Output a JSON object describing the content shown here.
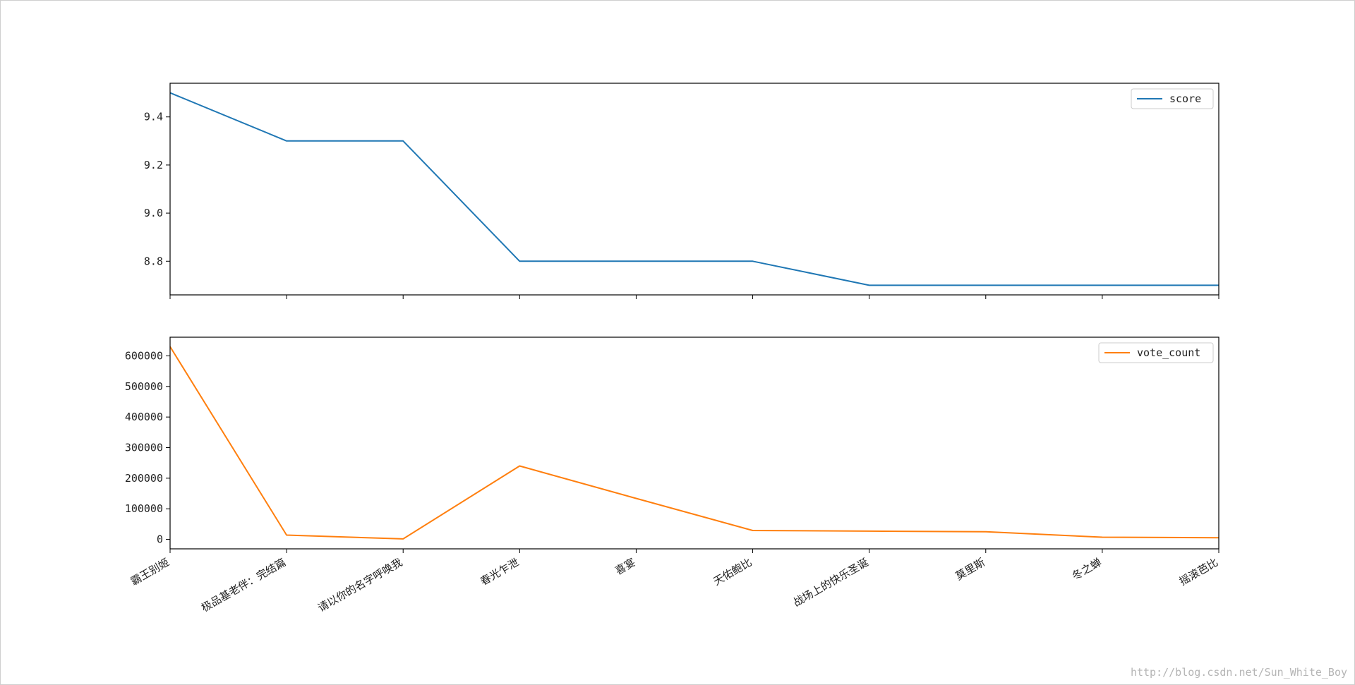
{
  "watermark": "http://blog.csdn.net/Sun_White_Boy",
  "chart_data": [
    {
      "type": "line",
      "categories": [
        "霸王别姬",
        "极品基老伴：完结篇",
        "请以你的名字呼唤我",
        "春光乍泄",
        "喜宴",
        "天佑鲍比",
        "战场上的快乐圣诞",
        "莫里斯",
        "冬之蝉",
        "摇滚芭比"
      ],
      "series": [
        {
          "name": "score",
          "color": "#1f77b4",
          "values": [
            9.5,
            9.3,
            9.3,
            8.8,
            8.8,
            8.8,
            8.7,
            8.7,
            8.7,
            8.7
          ]
        }
      ],
      "ylim": [
        8.66,
        9.54
      ],
      "yticks": [
        8.8,
        9.0,
        9.2,
        9.4
      ],
      "ytick_labels": [
        "8.8",
        "9.0",
        "9.2",
        "9.4"
      ],
      "show_x_labels": false,
      "grid": false,
      "legend": "top-right"
    },
    {
      "type": "line",
      "categories": [
        "霸王别姬",
        "极品基老伴：完结篇",
        "请以你的名字呼唤我",
        "春光乍泄",
        "喜宴",
        "天佑鲍比",
        "战场上的快乐圣诞",
        "莫里斯",
        "冬之蝉",
        "摇滚芭比"
      ],
      "series": [
        {
          "name": "vote_count",
          "color": "#ff7f0e",
          "values": [
            630000,
            14000,
            1500,
            240000,
            134000,
            29000,
            27000,
            25000,
            7000,
            5500
          ]
        }
      ],
      "ylim": [
        -31000,
        661000
      ],
      "yticks": [
        0,
        100000,
        200000,
        300000,
        400000,
        500000,
        600000
      ],
      "ytick_labels": [
        "0",
        "100000",
        "200000",
        "300000",
        "400000",
        "500000",
        "600000"
      ],
      "show_x_labels": true,
      "grid": false,
      "legend": "top-right"
    }
  ]
}
